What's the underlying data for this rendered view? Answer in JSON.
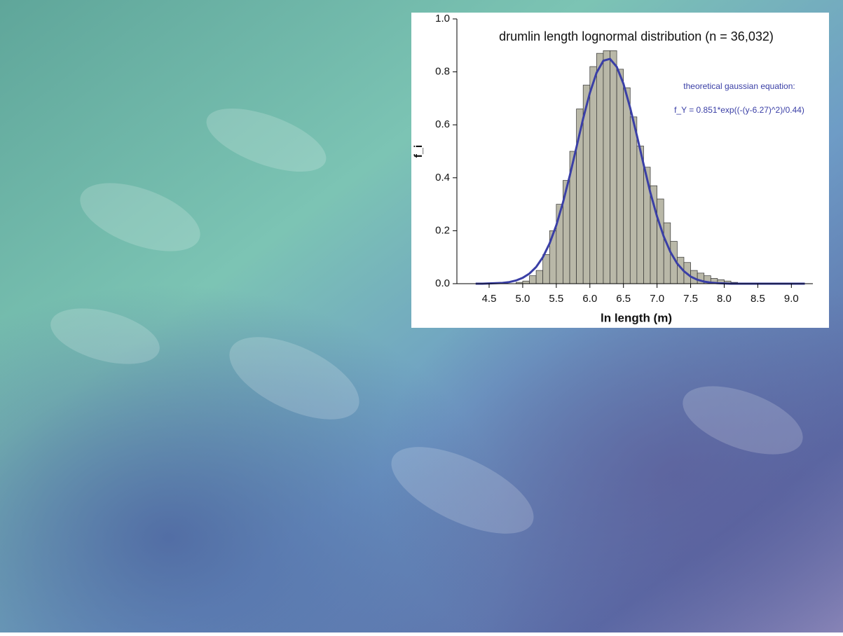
{
  "chart_data": {
    "type": "histogram",
    "title": "drumlin length lognormal distribution (n = 36,032)",
    "x_label": "ln length (m)",
    "y_label": "f_i",
    "annotations": [
      "theoretical gaussian equation:",
      "f_Y = 0.851*exp((-(y-6.27)^2)/0.44)"
    ],
    "bins": [
      4.9,
      5.0,
      5.1,
      5.2,
      5.3,
      5.4,
      5.5,
      5.6,
      5.7,
      5.8,
      5.9,
      6.0,
      6.1,
      6.2,
      6.3,
      6.4,
      6.5,
      6.6,
      6.7,
      6.8,
      6.9,
      7.0,
      7.1,
      7.2,
      7.3,
      7.4,
      7.5,
      7.6,
      7.7,
      7.8,
      7.9,
      8.0,
      8.1,
      8.2,
      8.3
    ],
    "counts": [
      0.005,
      0.01,
      0.03,
      0.05,
      0.11,
      0.2,
      0.3,
      0.39,
      0.5,
      0.66,
      0.75,
      0.82,
      0.87,
      0.88,
      0.88,
      0.81,
      0.74,
      0.63,
      0.52,
      0.44,
      0.37,
      0.32,
      0.23,
      0.16,
      0.1,
      0.08,
      0.05,
      0.04,
      0.03,
      0.02,
      0.015,
      0.01,
      0.005,
      0.003
    ],
    "color": "#b9b8a8",
    "curve": {
      "type": "line",
      "color": "#3a3fa6",
      "x": [
        4.3,
        4.4,
        4.5,
        4.6,
        4.7,
        4.8,
        4.9,
        5.0,
        5.1,
        5.2,
        5.3,
        5.4,
        5.5,
        5.6,
        5.7,
        5.8,
        5.9,
        6.0,
        6.1,
        6.2,
        6.3,
        6.4,
        6.5,
        6.6,
        6.7,
        6.8,
        6.9,
        7.0,
        7.1,
        7.2,
        7.3,
        7.4,
        7.5,
        7.6,
        7.7,
        7.8,
        7.9,
        8.0,
        8.1,
        8.2,
        8.3,
        8.4,
        8.5,
        8.6,
        8.7,
        8.8,
        8.9,
        9.0,
        9.1,
        9.2
      ],
      "values": [
        0,
        0,
        0.001,
        0.002,
        0.003,
        0.006,
        0.012,
        0.022,
        0.038,
        0.063,
        0.1,
        0.152,
        0.221,
        0.307,
        0.407,
        0.515,
        0.624,
        0.721,
        0.797,
        0.842,
        0.849,
        0.819,
        0.755,
        0.664,
        0.559,
        0.45,
        0.345,
        0.254,
        0.178,
        0.119,
        0.076,
        0.047,
        0.027,
        0.015,
        0.008,
        0.004,
        0.002,
        0.001,
        0,
        0,
        0,
        0,
        0,
        0,
        0,
        0,
        0,
        0,
        0,
        0
      ]
    },
    "xlim": [
      4.02,
      9.32
    ],
    "ylim": [
      0,
      1.0
    ],
    "xticks": [
      4.5,
      {
        "value": 5,
        "label": "5.0"
      },
      5.5,
      {
        "value": 6,
        "label": "6.0"
      },
      6.5,
      {
        "value": 7,
        "label": "7.0"
      },
      7.5,
      {
        "value": 8,
        "label": "8.0"
      },
      8.5,
      {
        "value": 9,
        "label": "9.0"
      }
    ],
    "yticks": [
      {
        "value": 0,
        "label": "0.0"
      },
      0.2,
      0.4,
      0.6,
      0.8,
      {
        "value": 1,
        "label": "1.0"
      }
    ]
  }
}
